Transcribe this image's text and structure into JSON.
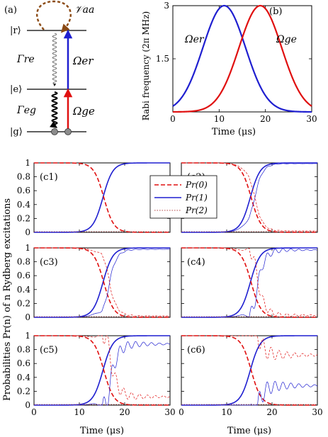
{
  "diagram": {
    "panel_label": "(a)",
    "levels": [
      {
        "id": "r",
        "label": "|r⟩"
      },
      {
        "id": "e",
        "label": "|e⟩"
      },
      {
        "id": "g",
        "label": "|g⟩"
      }
    ],
    "interaction_label": "𝒱aa",
    "decay_re": "Γre",
    "decay_eg": "Γeg",
    "coupling_er": "Ωer",
    "coupling_ge": "Ωge",
    "colors": {
      "blue": "#1f1fd0",
      "red": "#e01010",
      "brown": "#8b4a14",
      "dot": "#8c8c8c"
    }
  },
  "chart_data": [
    {
      "id": "b",
      "type": "line",
      "panel_label": "(b)",
      "xlabel": "Time (μs)",
      "ylabel": "Rabi frequency (2π MHz)",
      "xlim": [
        0,
        30
      ],
      "ylim": [
        0,
        3
      ],
      "xticks": [
        0,
        10,
        20,
        30
      ],
      "yticks": [
        1.5,
        3
      ],
      "series": [
        {
          "name": "Ωer",
          "color": "#1f1fd0",
          "peak": 3.0,
          "center": 11.1,
          "width": 4.6
        },
        {
          "name": "Ωge",
          "color": "#e01010",
          "peak": 3.0,
          "center": 18.9,
          "width": 4.6
        }
      ]
    },
    {
      "type": "line",
      "ylabel": "Probabilities Pr(n) of n Rydberg excitations",
      "xlabel": "Time (μs)",
      "xlim": [
        0,
        30
      ],
      "ylim": [
        0,
        1
      ],
      "xticks": [
        0,
        10,
        20,
        30
      ],
      "yticks": [
        0,
        0.2,
        0.4,
        0.6,
        0.8,
        1
      ],
      "legend": {
        "position": "top-center",
        "entries": [
          "Pr(0)",
          "Pr(1)",
          "Pr(2)"
        ]
      },
      "panels": [
        {
          "id": "c1",
          "label": "(c1)",
          "dip": 0.0,
          "settle1": 1.0,
          "settle0": 0.02,
          "osc": 0.0,
          "thin_shift": 0.0
        },
        {
          "id": "c2",
          "label": "(c2)",
          "dip": 0.22,
          "settle1": 0.99,
          "settle0": 0.02,
          "osc": 0.02,
          "thin_shift": 0.6
        },
        {
          "id": "c3",
          "label": "(c3)",
          "dip": 0.35,
          "settle1": 0.98,
          "settle0": 0.02,
          "osc": 0.03,
          "thin_shift": 1.0
        },
        {
          "id": "c4",
          "label": "(c4)",
          "dip": 0.45,
          "settle1": 0.97,
          "settle0": 0.03,
          "osc": 0.12,
          "thin_shift": 1.3
        },
        {
          "id": "c5",
          "label": "(c5)",
          "dip": 0.5,
          "settle1": 0.88,
          "settle0": 0.12,
          "osc": 0.18,
          "thin_shift": 1.6
        },
        {
          "id": "c6",
          "label": "(c6)",
          "dip": 0.5,
          "settle1": 0.28,
          "settle0": 0.72,
          "osc": 0.22,
          "thin_shift": 2.0
        }
      ]
    }
  ]
}
